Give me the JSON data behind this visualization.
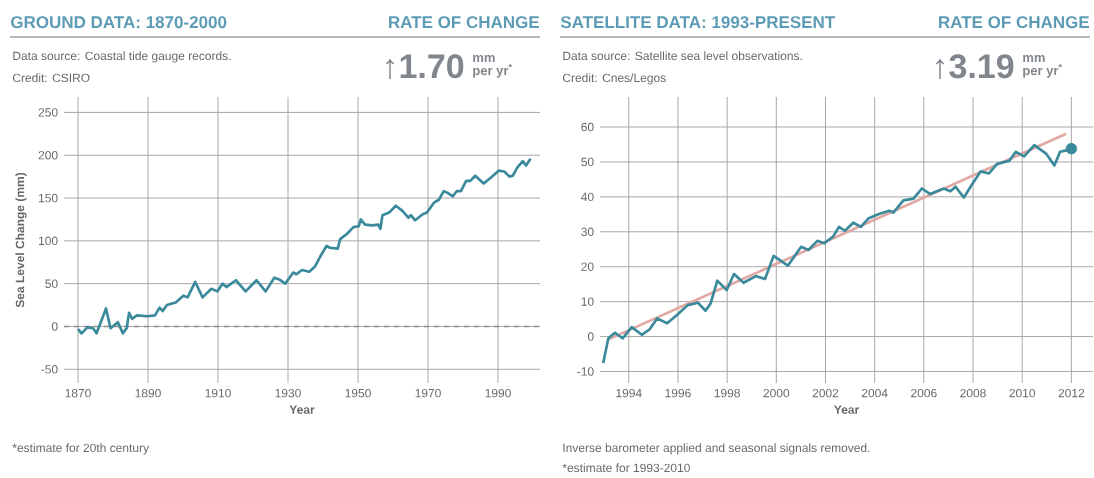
{
  "chart_data": [
    {
      "type": "line",
      "title": "GROUND DATA: 1870-2000",
      "subtitle": "Data source: Coastal tide gauge records.",
      "xlabel": "Year",
      "ylabel": "Sea Level Change (mm)",
      "annotations": [
        "Credit: CSIRO",
        "RATE OF CHANGE",
        "↑1.70",
        "mm",
        "per yr$^{*}$",
        "*estimate for 20th century"
      ],
      "x": [
        1870,
        1871,
        1872.7,
        1874.3,
        1875.3,
        1876.7,
        1878,
        1879.3,
        1881.4,
        1882.8,
        1883.9,
        1884.6,
        1885.5,
        1886.8,
        1889.8,
        1892,
        1893.3,
        1894.2,
        1895.4,
        1897.9,
        1900.1,
        1901.3,
        1903.5,
        1905.6,
        1908.1,
        1909.8,
        1911.3,
        1912.4,
        1915.1,
        1917.9,
        1921,
        1923.6,
        1926.1,
        1927.5,
        1929.2,
        1931.5,
        1932.4,
        1934,
        1936.1,
        1937.7,
        1939.4,
        1941,
        1942,
        1944.2,
        1944.9,
        1946.8,
        1948.7,
        1950.2,
        1950.8,
        1952,
        1954,
        1955.8,
        1956.4,
        1957,
        1958.9,
        1960.8,
        1962.7,
        1964.4,
        1965.1,
        1966.3,
        1968.5,
        1969.7,
        1971.8,
        1973.1,
        1974.5,
        1975.6,
        1977.1,
        1978.2,
        1979.4,
        1980.9,
        1982.1,
        1983.5,
        1985.9,
        1988,
        1990.2,
        1991.8,
        1993.3,
        1994.2,
        1995.6,
        1997.1,
        1998,
        1999.3
      ],
      "values": [
        -3,
        -8,
        -1,
        -2,
        -8,
        7,
        21,
        -2,
        5,
        -8,
        -2,
        16,
        9,
        13,
        12,
        13,
        22,
        18,
        25,
        28,
        36,
        34,
        52,
        34,
        44,
        41,
        50,
        46,
        54,
        41,
        54,
        41,
        57,
        55,
        50,
        63,
        61,
        66,
        64,
        70,
        83,
        94,
        92,
        91,
        102,
        108,
        116,
        117,
        125,
        119,
        118,
        119,
        114,
        130,
        133,
        141,
        135,
        127,
        130,
        124,
        131,
        133,
        145,
        148,
        158,
        156,
        152,
        158,
        158,
        170,
        170,
        176,
        167,
        174,
        182,
        181,
        175,
        176,
        186,
        193,
        188,
        196
      ],
      "color": "#3a8a9c",
      "xlim": [
        1866,
        2002
      ],
      "ylim": [
        -66,
        268
      ],
      "xticks": [
        1870,
        1890,
        1910,
        1930,
        1950,
        1970,
        1990
      ],
      "yticks": [
        -50,
        0,
        50,
        100,
        150,
        200,
        250
      ],
      "grid": true,
      "ref_lines": [
        {
          "axis": "y",
          "value": 0,
          "color": "#8c8c8c",
          "line_style": "dashed"
        }
      ]
    },
    {
      "type": "line",
      "title": "SATELLITE DATA: 1993-PRESENT",
      "subtitle": "Data source: Satellite sea level observations.",
      "xlabel": "Year",
      "annotations": [
        "Credit: Cnes/Legos",
        "RATE OF CHANGE",
        "↑3.19",
        "mm",
        "per yr$^{*}$",
        "Inverse barometer applied and seasonal signals removed.",
        "*estimate for 1993-2010"
      ],
      "series": [
        {
          "type": "line",
          "color": "#e2a9a4",
          "x": [
            1993.17,
            2011.79
          ],
          "values": [
            -0.8,
            58.1
          ]
        },
        {
          "type": "line",
          "color": "#3a8a9c",
          "x": [
            1992.96,
            1993.17,
            1993.44,
            1993.75,
            1994.12,
            1994.53,
            1994.85,
            1995.15,
            1995.56,
            1995.96,
            1996.4,
            1996.81,
            1997.12,
            1997.33,
            1997.6,
            1997.98,
            1998.28,
            1998.67,
            1999.17,
            1999.54,
            1999.89,
            2000.47,
            2001.01,
            2001.31,
            2001.67,
            2001.94,
            2002.31,
            2002.55,
            2002.79,
            2003.13,
            2003.44,
            2003.74,
            2004.15,
            2004.59,
            2004.76,
            2005.17,
            2005.58,
            2005.92,
            2006.26,
            2006.81,
            2007.08,
            2007.29,
            2007.63,
            2007.9,
            2008.31,
            2008.65,
            2008.99,
            2009.47,
            2009.74,
            2010.08,
            2010.49,
            2010.97,
            2011.31,
            2011.54,
            2011.79,
            2012.0
          ],
          "values": [
            -7.6,
            -0.5,
            1.1,
            -0.5,
            2.7,
            0.5,
            2.1,
            5.2,
            3.8,
            6.2,
            9,
            9.7,
            7.4,
            9.5,
            16,
            13.3,
            17.9,
            15.4,
            17.3,
            16.5,
            23.1,
            20.3,
            25.7,
            24.8,
            27.4,
            26.7,
            28.6,
            31.4,
            30.3,
            32.6,
            31.4,
            33.8,
            35,
            36,
            35.5,
            39,
            39.5,
            42.4,
            40.8,
            42.4,
            41.6,
            42.9,
            39.8,
            42.9,
            47.3,
            46.7,
            49.5,
            50.3,
            52.9,
            51.6,
            54.8,
            52.4,
            49,
            52.9,
            53.3,
            53.8
          ]
        },
        {
          "type": "scatter",
          "color": "#3a8a9c",
          "marker": "circle",
          "x": [
            2012.0
          ],
          "values": [
            53.8
          ]
        }
      ],
      "xlim": [
        1992.83,
        2012.88
      ],
      "ylim": [
        -13.3,
        68.6
      ],
      "xticks": [
        1994,
        1996,
        1998,
        2000,
        2002,
        2004,
        2006,
        2008,
        2010,
        2012
      ],
      "yticks": [
        -10,
        0,
        10,
        20,
        30,
        40,
        50,
        60
      ],
      "grid": true
    }
  ]
}
